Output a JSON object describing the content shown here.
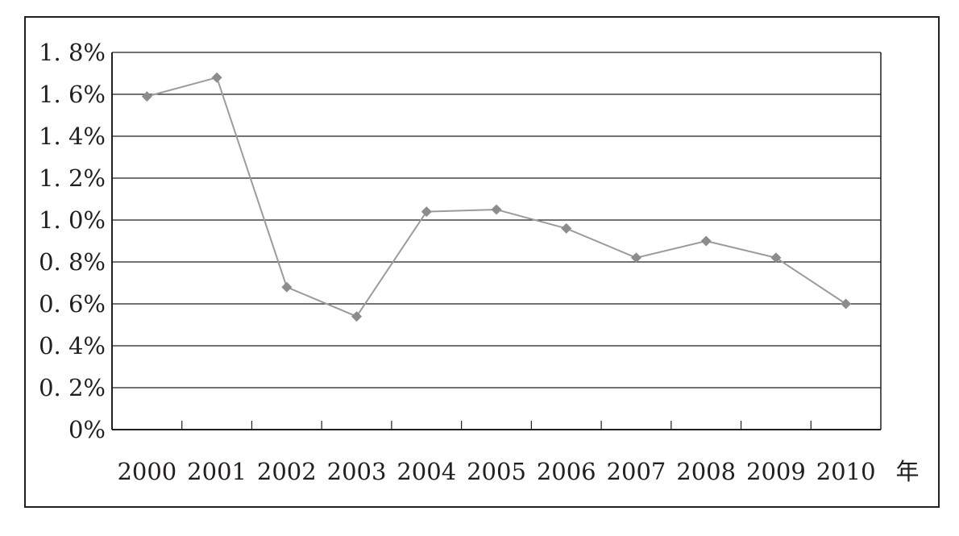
{
  "chart_data": {
    "type": "line",
    "x_unit_label": "年",
    "categories": [
      "2000",
      "2001",
      "2002",
      "2003",
      "2004",
      "2005",
      "2006",
      "2007",
      "2008",
      "2009",
      "2010"
    ],
    "series": [
      {
        "values": [
          1.59,
          1.68,
          0.68,
          0.54,
          1.04,
          1.05,
          0.96,
          0.82,
          0.9,
          0.82,
          0.6
        ]
      }
    ],
    "y_ticks": [
      "0%",
      "0. 2%",
      "0. 4%",
      "0. 6%",
      "0. 8%",
      "1. 0%",
      "1. 2%",
      "1. 4%",
      "1. 6%",
      "1. 8%"
    ],
    "ylim": [
      0,
      1.8
    ],
    "y_step": 0.2,
    "grid": true,
    "legend": "none",
    "line_color": "#9b9b9b",
    "marker_color": "#8c8c8c",
    "axis_color": "#231f20",
    "marker": "diamond"
  }
}
